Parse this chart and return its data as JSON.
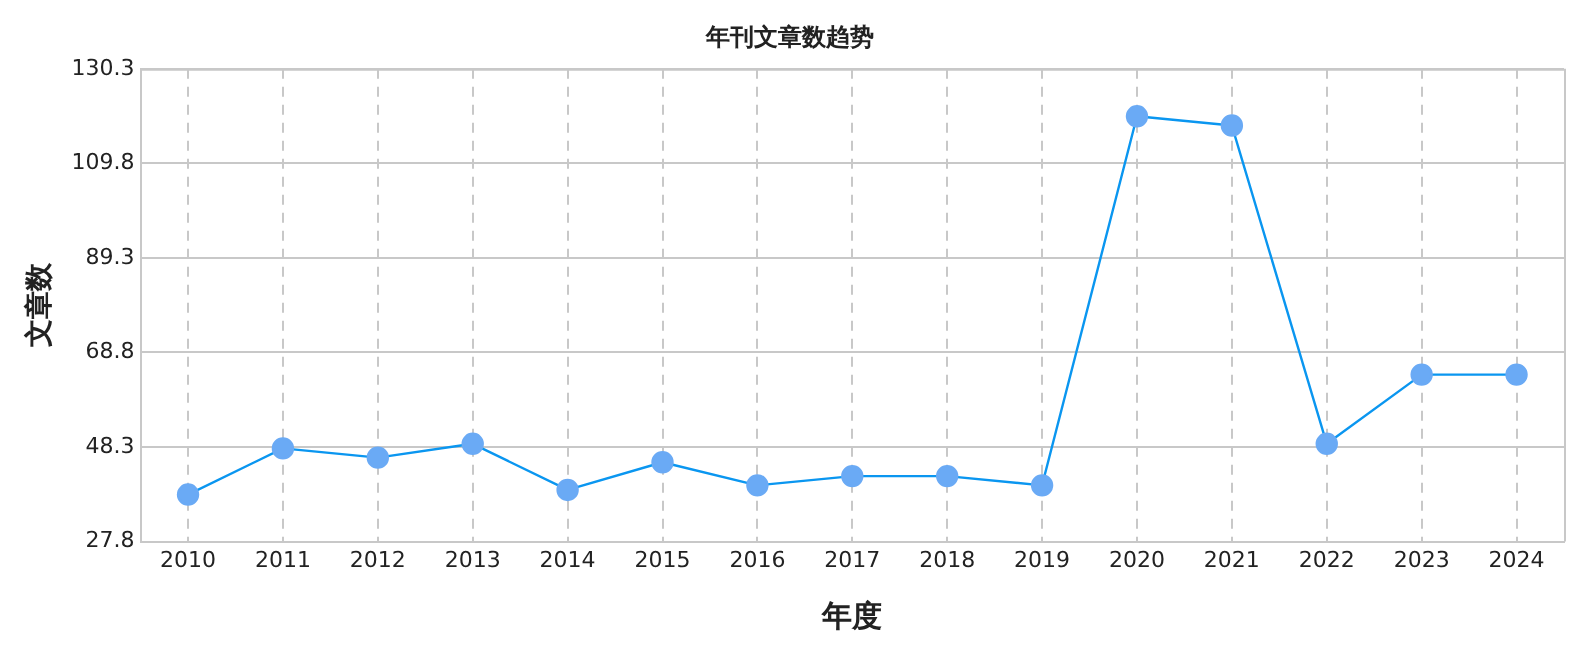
{
  "chart_data": {
    "type": "line",
    "title": "年刊文章数趋势",
    "xlabel": "年度",
    "ylabel": "文章数",
    "categories": [
      "2010",
      "2011",
      "2012",
      "2013",
      "2014",
      "2015",
      "2016",
      "2017",
      "2018",
      "2019",
      "2020",
      "2021",
      "2022",
      "2023",
      "2024"
    ],
    "series": [
      {
        "color": "#0a96f0",
        "values": [
          38,
          48,
          46,
          49,
          39,
          45,
          40,
          42,
          42,
          40,
          120,
          118,
          49,
          64,
          64
        ]
      }
    ],
    "ylim": [
      27.8,
      130.3
    ],
    "yticks": [
      27.8,
      48.3,
      68.8,
      89.3,
      109.8,
      130.3
    ],
    "grid": true,
    "legend": false,
    "marker": "circle",
    "line_style": "solid"
  }
}
